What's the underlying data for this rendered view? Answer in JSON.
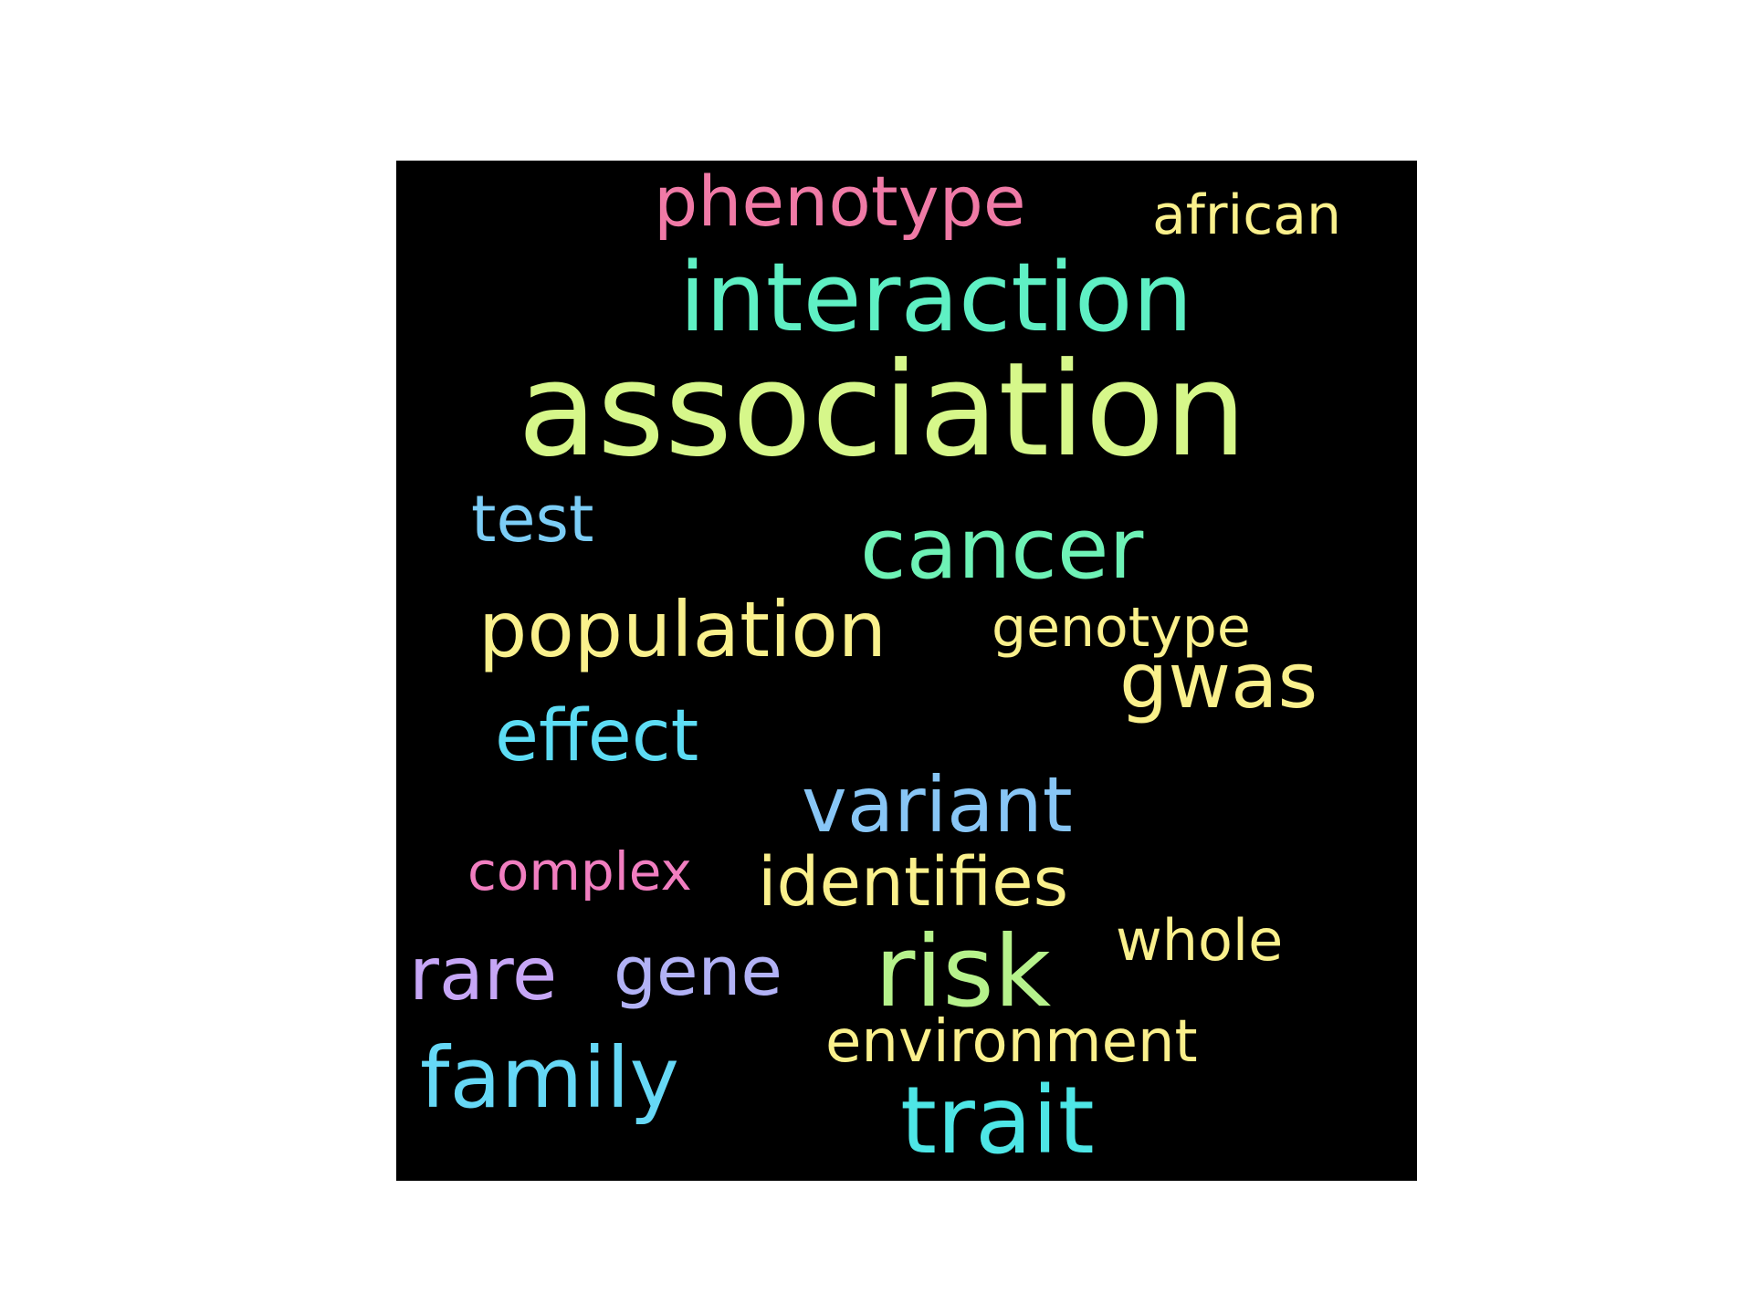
{
  "background_color": "#000000",
  "words": {
    "phenotype": {
      "text": "phenotype",
      "color": "#f07aa6"
    },
    "african": {
      "text": "african",
      "color": "#faf08c"
    },
    "interaction": {
      "text": "interaction",
      "color": "#5ff0c4"
    },
    "association": {
      "text": "association",
      "color": "#d6f78a"
    },
    "test": {
      "text": "test",
      "color": "#7ccdf6"
    },
    "cancer": {
      "text": "cancer",
      "color": "#6ef2b6"
    },
    "population": {
      "text": "population",
      "color": "#f9f08c"
    },
    "genotype": {
      "text": "genotype",
      "color": "#faf08c"
    },
    "gwas": {
      "text": "gwas",
      "color": "#faf08c"
    },
    "effect": {
      "text": "effect",
      "color": "#5ddcf4"
    },
    "variant": {
      "text": "variant",
      "color": "#88c6f6"
    },
    "complex": {
      "text": "complex",
      "color": "#f17ec0"
    },
    "identifies": {
      "text": "identifies",
      "color": "#faf08c"
    },
    "whole": {
      "text": "whole",
      "color": "#faf08c"
    },
    "rare": {
      "text": "rare",
      "color": "#c6a6f6"
    },
    "gene": {
      "text": "gene",
      "color": "#b2b2f6"
    },
    "risk": {
      "text": "risk",
      "color": "#b6f28c"
    },
    "environment": {
      "text": "environment",
      "color": "#faf08c"
    },
    "family": {
      "text": "family",
      "color": "#66d8f6"
    },
    "trait": {
      "text": "trait",
      "color": "#4ee6e6"
    }
  }
}
